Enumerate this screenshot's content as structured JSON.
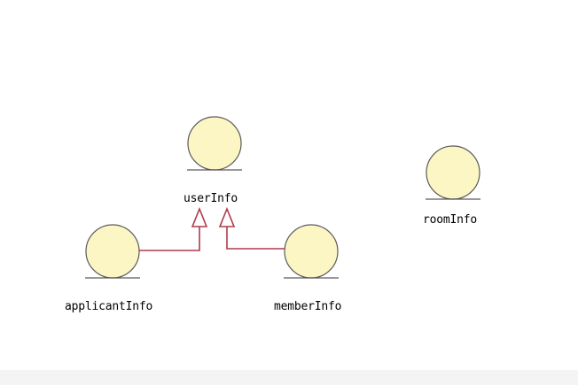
{
  "diagram": {
    "entities": [
      {
        "id": "userInfo",
        "label": "userInfo"
      },
      {
        "id": "applicantInfo",
        "label": "applicantInfo"
      },
      {
        "id": "memberInfo",
        "label": "memberInfo"
      },
      {
        "id": "roomInfo",
        "label": "roomInfo"
      }
    ],
    "generalizations": [
      {
        "from": "applicantInfo",
        "to": "userInfo"
      },
      {
        "from": "memberInfo",
        "to": "userInfo"
      }
    ]
  },
  "colors": {
    "entity_fill": "#fcf6c4",
    "entity_stroke": "#5a5a5a",
    "connector": "#b03a4a",
    "text": "#000000",
    "background": "#ffffff"
  }
}
